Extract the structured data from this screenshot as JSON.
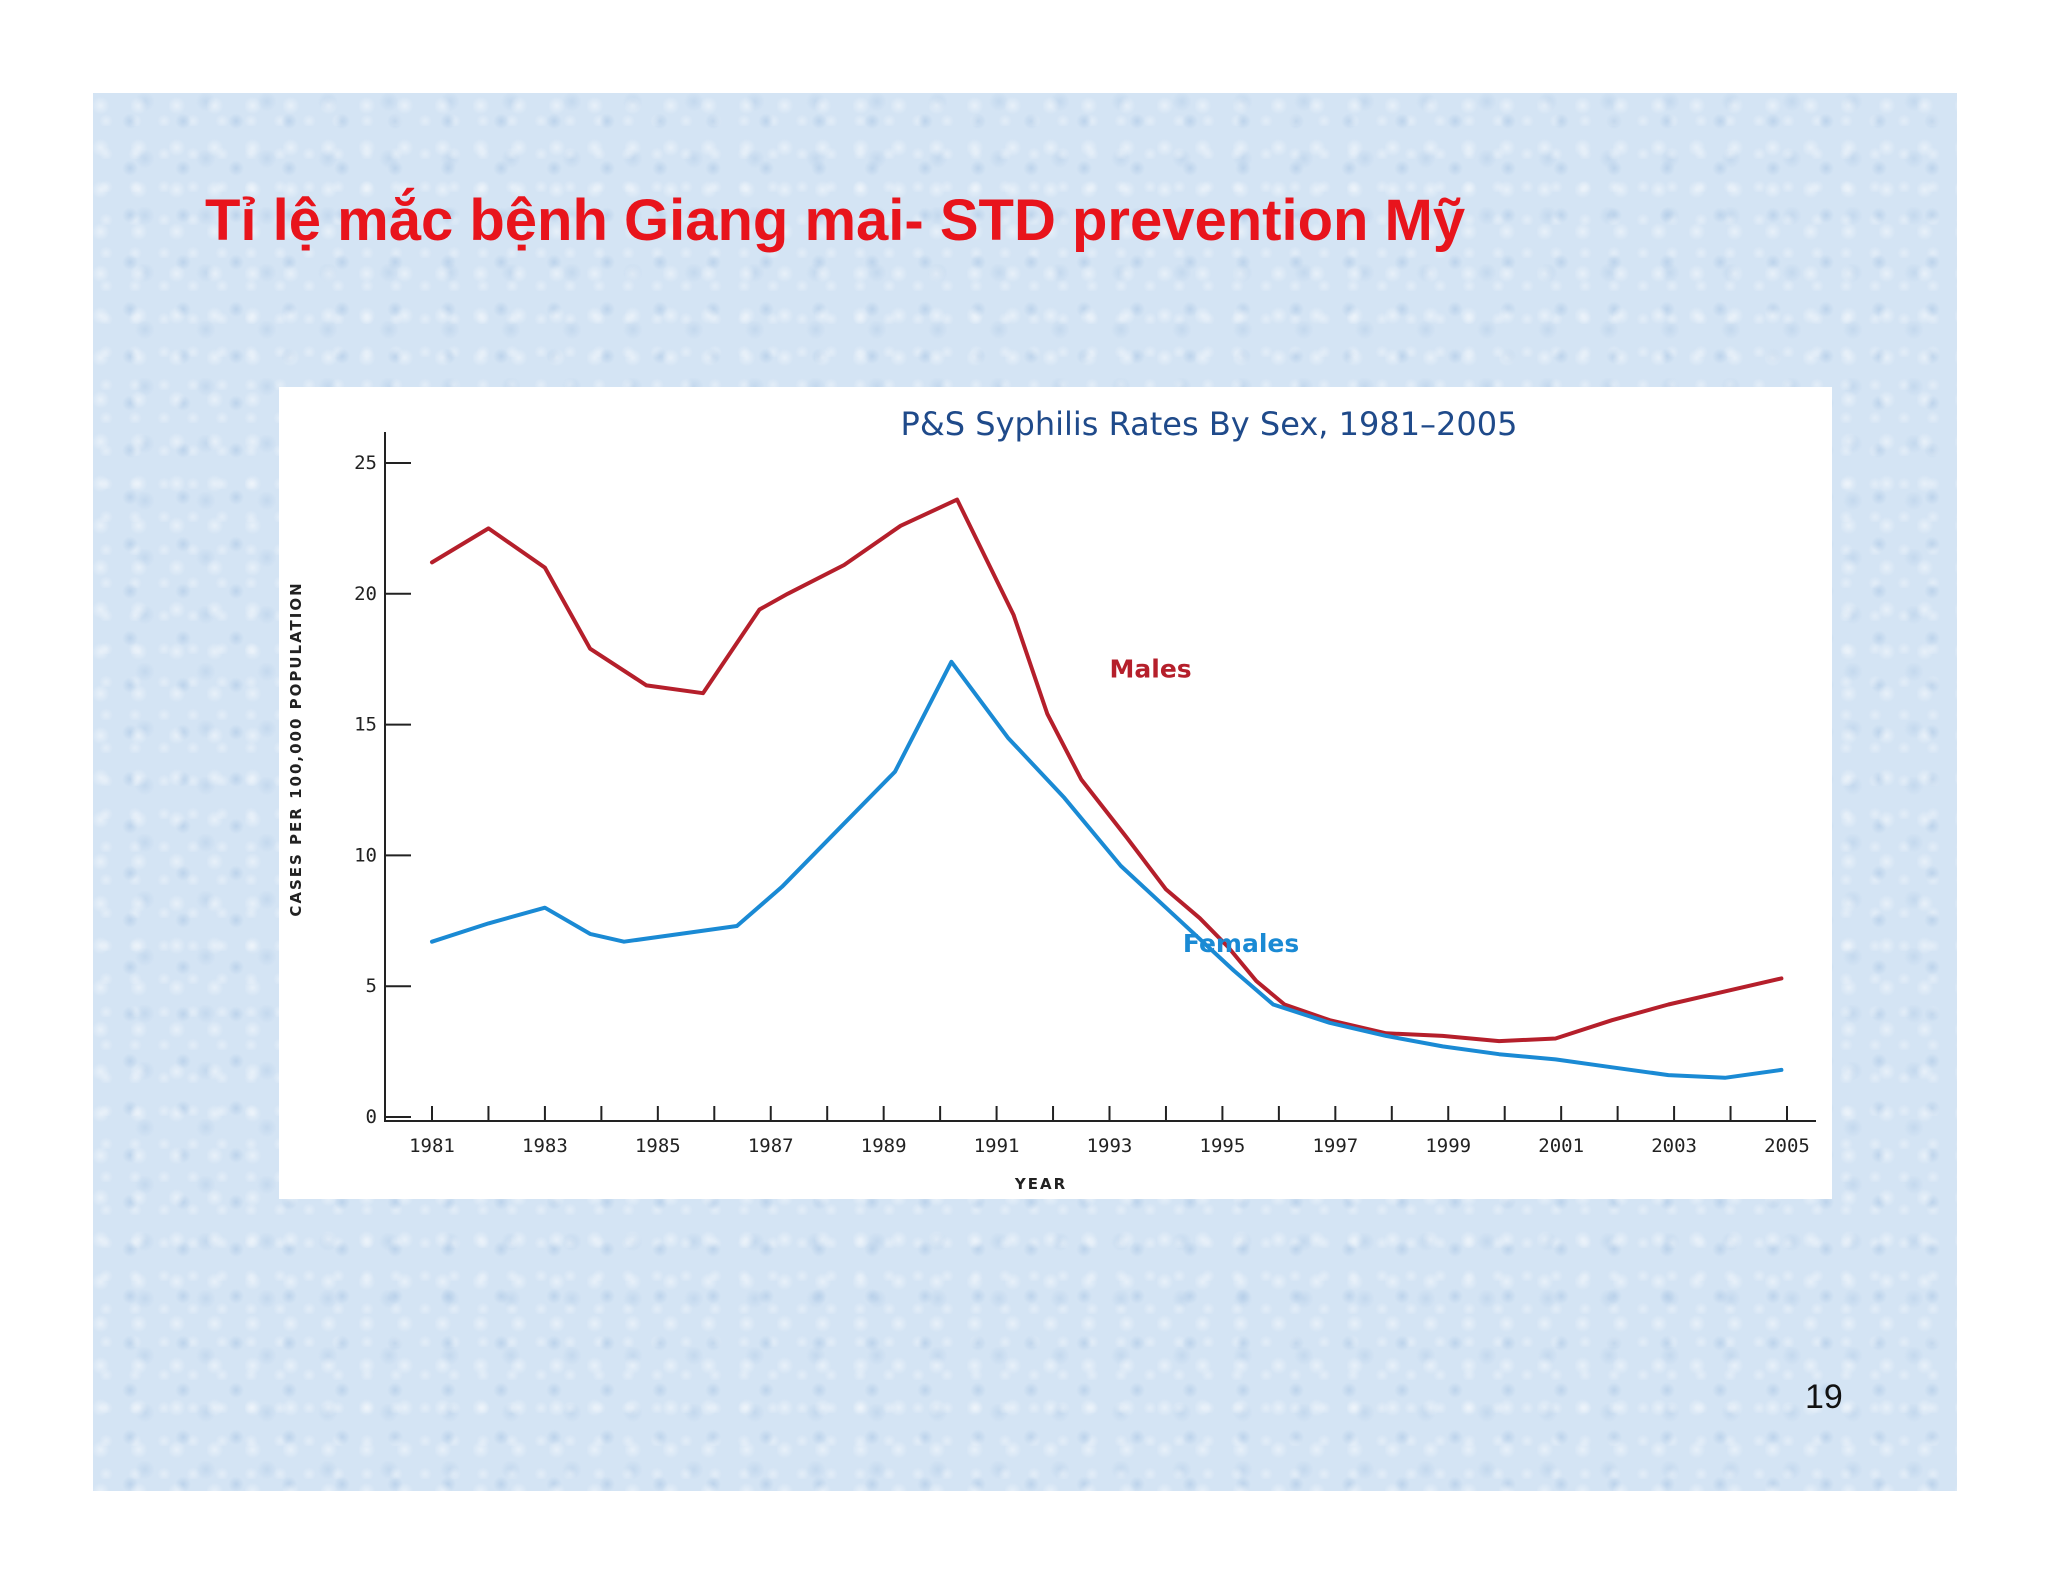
{
  "slide": {
    "title": "Tỉ lệ mắc bệnh Giang mai- STD prevention Mỹ",
    "page_number": "19"
  },
  "colors": {
    "title": "#e8141c",
    "males": "#b51f2b",
    "females": "#1a8ad4",
    "chart_title": "#1f4a8a"
  },
  "chart_data": {
    "type": "line",
    "title": "P&S Syphilis Rates By Sex, 1981–2005",
    "xlabel": "YEAR",
    "ylabel": "CASES PER 100,000 POPULATION",
    "xlim": [
      1981,
      2005
    ],
    "ylim": [
      0,
      25
    ],
    "x_ticks": [
      1981,
      1982,
      1983,
      1984,
      1985,
      1986,
      1987,
      1988,
      1989,
      1990,
      1991,
      1992,
      1993,
      1994,
      1995,
      1996,
      1997,
      1998,
      1999,
      2000,
      2001,
      2002,
      2003,
      2004,
      2005
    ],
    "x_tick_labels": [
      "1981",
      "1983",
      "1985",
      "1987",
      "1989",
      "1991",
      "1993",
      "1995",
      "1997",
      "1999",
      "2001",
      "2003",
      "2005"
    ],
    "y_ticks": [
      "0",
      "5",
      "10",
      "15",
      "20",
      "25"
    ],
    "grid": false,
    "series": [
      {
        "name": "Males",
        "label": "Males",
        "x": [
          1981,
          1982,
          1983,
          1983.8,
          1984.8,
          1985.8,
          1986.8,
          1987.3,
          1988.3,
          1989.3,
          1990.3,
          1991.3,
          1991.9,
          1992.5,
          1993.3,
          1994,
          1994.6,
          1995.1,
          1995.6,
          1996.1,
          1996.9,
          1997.9,
          1998.9,
          1999.9,
          2000.9,
          2001.9,
          2002.9,
          2003.9,
          2004.9
        ],
        "values": [
          21.2,
          22.5,
          21.0,
          17.9,
          16.5,
          16.2,
          19.4,
          20.0,
          21.1,
          22.6,
          23.6,
          19.2,
          15.4,
          12.9,
          10.7,
          8.7,
          7.6,
          6.5,
          5.2,
          4.3,
          3.7,
          3.2,
          3.1,
          2.9,
          3.0,
          3.7,
          4.3,
          4.8,
          5.3
        ],
        "label_at": [
          1993.0,
          16.8
        ]
      },
      {
        "name": "Females",
        "label": "Females",
        "x": [
          1981,
          1982,
          1983,
          1983.8,
          1984.4,
          1985.4,
          1986.4,
          1987.2,
          1988.2,
          1989.2,
          1990.2,
          1991.2,
          1992.2,
          1993.2,
          1994.2,
          1995.2,
          1995.9,
          1996.9,
          1997.9,
          1998.9,
          1999.9,
          2000.9,
          2001.9,
          2002.9,
          2003.9,
          2004.9
        ],
        "values": [
          6.7,
          7.4,
          8.0,
          7.0,
          6.7,
          7.0,
          7.3,
          8.8,
          11.0,
          13.2,
          17.4,
          14.5,
          12.2,
          9.6,
          7.6,
          5.6,
          4.3,
          3.6,
          3.1,
          2.7,
          2.4,
          2.2,
          1.9,
          1.6,
          1.5,
          1.8
        ],
        "label_at": [
          1994.3,
          6.3
        ]
      }
    ]
  }
}
